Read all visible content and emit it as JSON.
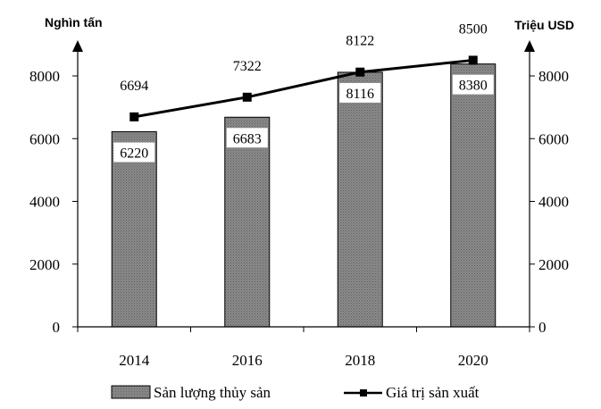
{
  "chart_data": {
    "type": "bar",
    "combo": "bar+line",
    "categories": [
      "2014",
      "2016",
      "2018",
      "2020"
    ],
    "series": [
      {
        "name": "Sản lượng thủy sản",
        "type": "bar",
        "axis": "left",
        "values": [
          6220,
          6683,
          8116,
          8380
        ],
        "color": "#7f7f7f"
      },
      {
        "name": "Giá trị sản xuất",
        "type": "line",
        "axis": "right",
        "values": [
          6694,
          7322,
          8122,
          8500
        ],
        "color": "#000000"
      }
    ],
    "left_axis": {
      "title": "Nghìn tấn",
      "ylim": [
        0,
        8000
      ],
      "ticks": [
        "0",
        "2000",
        "4000",
        "6000",
        "8000"
      ]
    },
    "right_axis": {
      "title": "Triệu  USD",
      "ylim": [
        0,
        8000
      ],
      "ticks": [
        "0",
        "2000",
        "4000",
        "6000",
        "8000"
      ]
    },
    "grid": false,
    "legend_position": "bottom"
  }
}
